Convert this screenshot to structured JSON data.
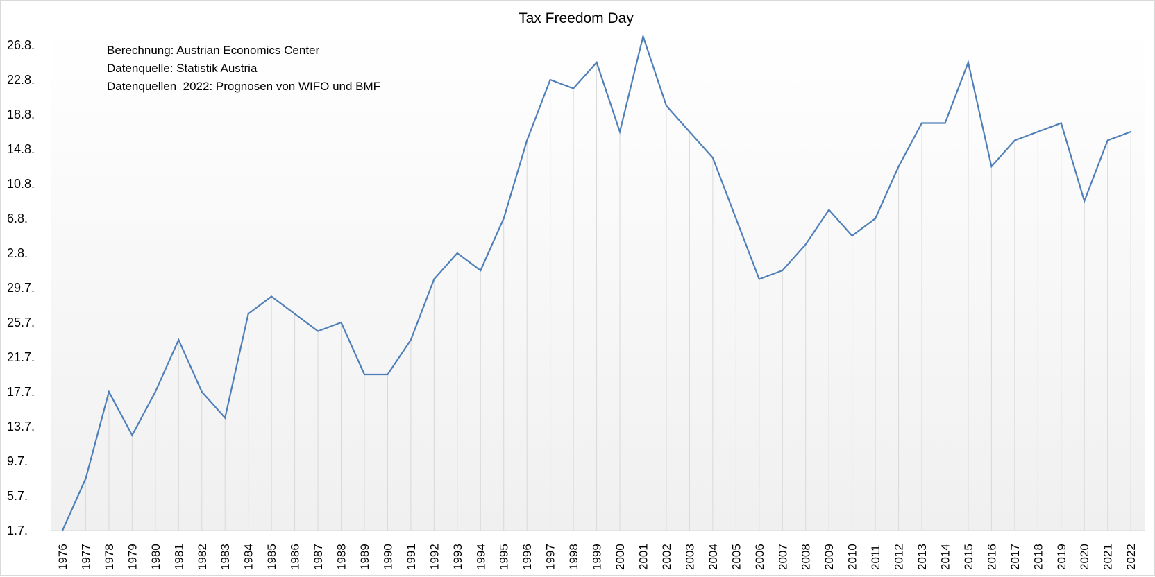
{
  "chart_data": {
    "type": "line",
    "title": "Tax Freedom Day",
    "xlabel": "",
    "ylabel": "",
    "annotations": [
      "Berechnung: Austrian Economics Center",
      "Datenquelle: Statistik Austria",
      "Datenquellen  2022: Prognosen von WIFO und BMF"
    ],
    "y_unit": "date (day.month.)",
    "ylim": [
      "1.7.",
      "26.8."
    ],
    "y_ticks": [
      "1.7.",
      "5.7.",
      "9.7.",
      "13.7.",
      "17.7.",
      "21.7.",
      "25.7.",
      "29.7.",
      "2.8.",
      "6.8.",
      "10.8.",
      "14.8.",
      "18.8.",
      "22.8.",
      "26.8."
    ],
    "grid": "vertical drop lines only",
    "legend": "none",
    "x": [
      "1976",
      "1977",
      "1978",
      "1979",
      "1980",
      "1981",
      "1982",
      "1983",
      "1984",
      "1985",
      "1986",
      "1987",
      "1988",
      "1989",
      "1990",
      "1991",
      "1992",
      "1993",
      "1994",
      "1995",
      "1996",
      "1997",
      "1998",
      "1999",
      "2000",
      "2001",
      "2002",
      "2003",
      "2004",
      "2005",
      "2006",
      "2007",
      "2008",
      "2009",
      "2010",
      "2011",
      "2012",
      "2013",
      "2014",
      "2015",
      "2016",
      "2017",
      "2018",
      "2019",
      "2020",
      "2021",
      "2022"
    ],
    "series": [
      {
        "name": "Tax Freedom Day",
        "color": "#4f7fb8",
        "values": [
          "1.7.",
          "7.7.",
          "17.7.",
          "12.7.",
          "17.7.",
          "23.7.",
          "17.7.",
          "14.7.",
          "26.7.",
          "28.7.",
          "26.7.",
          "24.7.",
          "25.7.",
          "19.7.",
          "19.7.",
          "23.7.",
          "30.7.",
          "2.8.",
          "31.7.",
          "6.8.",
          "15.8.",
          "22.8.",
          "21.8.",
          "24.8.",
          "16.8.",
          "27.8.",
          "19.8.",
          "16.8.",
          "13.8.",
          "6.8.",
          "30.7.",
          "31.7.",
          "3.8.",
          "7.8.",
          "4.8.",
          "6.8.",
          "12.8.",
          "17.8.",
          "17.8.",
          "24.8.",
          "12.8.",
          "15.8.",
          "16.8.",
          "17.8.",
          "8.8.",
          "15.8.",
          "16.8."
        ]
      }
    ]
  }
}
